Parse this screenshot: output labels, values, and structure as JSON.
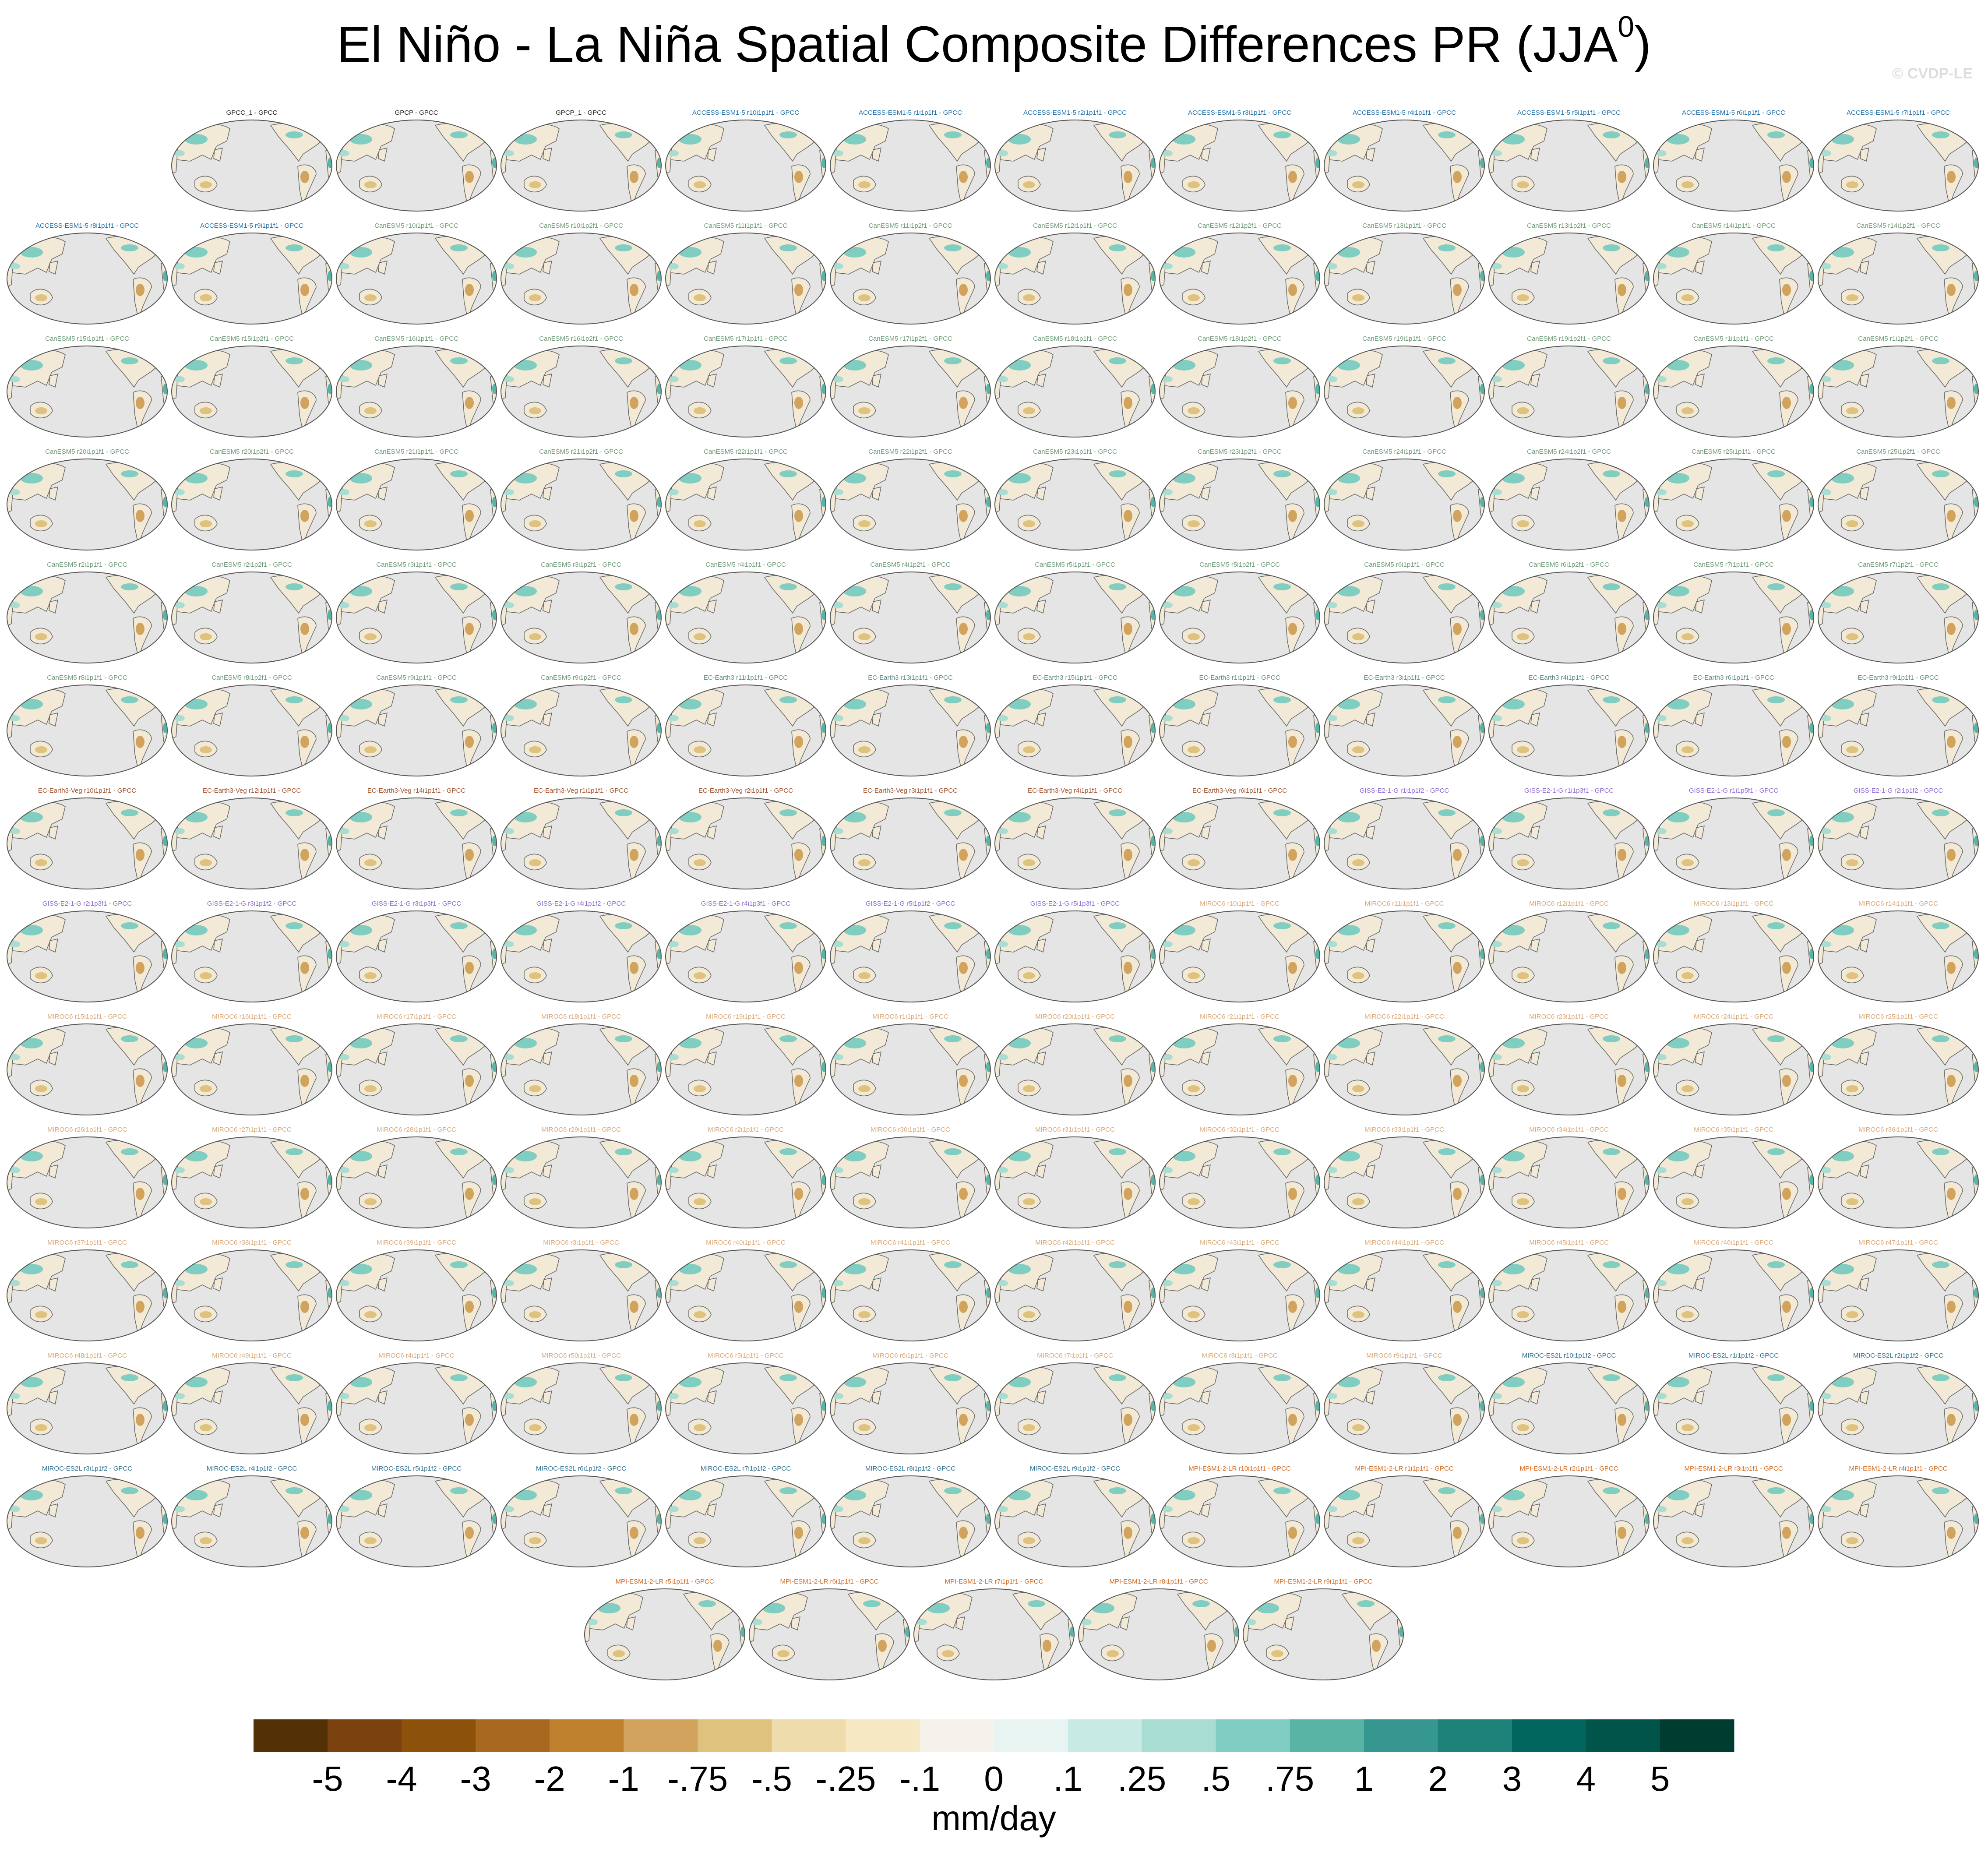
{
  "title": "El Niño - La Niña Spatial Composite Differences PR (JJA",
  "title_superscript": "0",
  "title_end": ")",
  "watermark": "© CVDP-LE",
  "groups": [
    {
      "color": "#222222",
      "titles": [
        "GPCC_1 - GPCC",
        "GPCP - GPCC",
        "GPCP_1 - GPCC"
      ]
    },
    {
      "color": "#1f6fa8",
      "titles": [
        "ACCESS-ESM1-5 r10i1p1f1 - GPCC",
        "ACCESS-ESM1-5 r1i1p1f1 - GPCC",
        "ACCESS-ESM1-5 r2i1p1f1 - GPCC",
        "ACCESS-ESM1-5 r3i1p1f1 - GPCC",
        "ACCESS-ESM1-5 r4i1p1f1 - GPCC",
        "ACCESS-ESM1-5 r5i1p1f1 - GPCC",
        "ACCESS-ESM1-5 r6i1p1f1 - GPCC",
        "ACCESS-ESM1-5 r7i1p1f1 - GPCC",
        "ACCESS-ESM1-5 r8i1p1f1 - GPCC",
        "ACCESS-ESM1-5 r9i1p1f1 - GPCC"
      ]
    },
    {
      "color": "#6f9a78",
      "titles": [
        "CanESM5 r10i1p1f1 - GPCC",
        "CanESM5 r10i1p2f1 - GPCC",
        "CanESM5 r11i1p1f1 - GPCC",
        "CanESM5 r11i1p2f1 - GPCC",
        "CanESM5 r12i1p1f1 - GPCC",
        "CanESM5 r12i1p2f1 - GPCC",
        "CanESM5 r13i1p1f1 - GPCC",
        "CanESM5 r13i1p2f1 - GPCC",
        "CanESM5 r14i1p1f1 - GPCC",
        "CanESM5 r14i1p2f1 - GPCC",
        "CanESM5 r15i1p1f1 - GPCC",
        "CanESM5 r15i1p2f1 - GPCC",
        "CanESM5 r16i1p1f1 - GPCC",
        "CanESM5 r16i1p2f1 - GPCC",
        "CanESM5 r17i1p1f1 - GPCC",
        "CanESM5 r17i1p2f1 - GPCC",
        "CanESM5 r18i1p1f1 - GPCC",
        "CanESM5 r18i1p2f1 - GPCC",
        "CanESM5 r19i1p1f1 - GPCC",
        "CanESM5 r19i1p2f1 - GPCC",
        "CanESM5 r1i1p1f1 - GPCC",
        "CanESM5 r1i1p2f1 - GPCC",
        "CanESM5 r20i1p1f1 - GPCC",
        "CanESM5 r20i1p2f1 - GPCC",
        "CanESM5 r21i1p1f1 - GPCC",
        "CanESM5 r21i1p2f1 - GPCC",
        "CanESM5 r22i1p1f1 - GPCC",
        "CanESM5 r22i1p2f1 - GPCC",
        "CanESM5 r23i1p1f1 - GPCC",
        "CanESM5 r23i1p2f1 - GPCC",
        "CanESM5 r24i1p1f1 - GPCC",
        "CanESM5 r24i1p2f1 - GPCC",
        "CanESM5 r25i1p1f1 - GPCC",
        "CanESM5 r25i1p2f1 - GPCC",
        "CanESM5 r2i1p1f1 - GPCC",
        "CanESM5 r2i1p2f1 - GPCC",
        "CanESM5 r3i1p1f1 - GPCC",
        "CanESM5 r3i1p2f1 - GPCC",
        "CanESM5 r4i1p1f1 - GPCC",
        "CanESM5 r4i1p2f1 - GPCC",
        "CanESM5 r5i1p1f1 - GPCC",
        "CanESM5 r5i1p2f1 - GPCC",
        "CanESM5 r6i1p1f1 - GPCC",
        "CanESM5 r6i1p2f1 - GPCC",
        "CanESM5 r7i1p1f1 - GPCC",
        "CanESM5 r7i1p2f1 - GPCC",
        "CanESM5 r8i1p1f1 - GPCC",
        "CanESM5 r8i1p2f1 - GPCC",
        "CanESM5 r9i1p1f1 - GPCC",
        "CanESM5 r9i1p2f1 - GPCC"
      ]
    },
    {
      "color": "#5f8a8a",
      "titles": [
        "EC-Earth3 r11i1p1f1 - GPCC",
        "EC-Earth3 r13i1p1f1 - GPCC",
        "EC-Earth3 r15i1p1f1 - GPCC",
        "EC-Earth3 r1i1p1f1 - GPCC",
        "EC-Earth3 r3i1p1f1 - GPCC",
        "EC-Earth3 r4i1p1f1 - GPCC",
        "EC-Earth3 r6i1p1f1 - GPCC",
        "EC-Earth3 r9i1p1f1 - GPCC"
      ]
    },
    {
      "color": "#a0522d",
      "titles": [
        "EC-Earth3-Veg r10i1p1f1 - GPCC",
        "EC-Earth3-Veg r12i1p1f1 - GPCC",
        "EC-Earth3-Veg r14i1p1f1 - GPCC",
        "EC-Earth3-Veg r1i1p1f1 - GPCC",
        "EC-Earth3-Veg r2i1p1f1 - GPCC",
        "EC-Earth3-Veg r3i1p1f1 - GPCC",
        "EC-Earth3-Veg r4i1p1f1 - GPCC",
        "EC-Earth3-Veg r6i1p1f1 - GPCC"
      ]
    },
    {
      "color": "#8e6bd1",
      "titles": [
        "GISS-E2-1-G r1i1p1f2 - GPCC",
        "GISS-E2-1-G r1i1p3f1 - GPCC",
        "GISS-E2-1-G r1i1p5f1 - GPCC",
        "GISS-E2-1-G r2i1p1f2 - GPCC",
        "GISS-E2-1-G r2i1p3f1 - GPCC",
        "GISS-E2-1-G r3i1p1f2 - GPCC",
        "GISS-E2-1-G r3i1p3f1 - GPCC",
        "GISS-E2-1-G r4i1p1f2 - GPCC",
        "GISS-E2-1-G r4i1p3f1 - GPCC",
        "GISS-E2-1-G r5i1p1f2 - GPCC",
        "GISS-E2-1-G r5i1p3f1 - GPCC"
      ]
    },
    {
      "color": "#d9a878",
      "titles": [
        "MIROC6 r10i1p1f1 - GPCC",
        "MIROC6 r11i1p1f1 - GPCC",
        "MIROC6 r12i1p1f1 - GPCC",
        "MIROC6 r13i1p1f1 - GPCC",
        "MIROC6 r14i1p1f1 - GPCC",
        "MIROC6 r15i1p1f1 - GPCC",
        "MIROC6 r16i1p1f1 - GPCC",
        "MIROC6 r17i1p1f1 - GPCC",
        "MIROC6 r18i1p1f1 - GPCC",
        "MIROC6 r19i1p1f1 - GPCC",
        "MIROC6 r1i1p1f1 - GPCC",
        "MIROC6 r20i1p1f1 - GPCC",
        "MIROC6 r21i1p1f1 - GPCC",
        "MIROC6 r22i1p1f1 - GPCC",
        "MIROC6 r23i1p1f1 - GPCC",
        "MIROC6 r24i1p1f1 - GPCC",
        "MIROC6 r25i1p1f1 - GPCC",
        "MIROC6 r26i1p1f1 - GPCC",
        "MIROC6 r27i1p1f1 - GPCC",
        "MIROC6 r28i1p1f1 - GPCC",
        "MIROC6 r29i1p1f1 - GPCC",
        "MIROC6 r2i1p1f1 - GPCC",
        "MIROC6 r30i1p1f1 - GPCC",
        "MIROC6 r31i1p1f1 - GPCC",
        "MIROC6 r32i1p1f1 - GPCC",
        "MIROC6 r33i1p1f1 - GPCC",
        "MIROC6 r34i1p1f1 - GPCC",
        "MIROC6 r35i1p1f1 - GPCC",
        "MIROC6 r36i1p1f1 - GPCC",
        "MIROC6 r37i1p1f1 - GPCC",
        "MIROC6 r38i1p1f1 - GPCC",
        "MIROC6 r39i1p1f1 - GPCC",
        "MIROC6 r3i1p1f1 - GPCC",
        "MIROC6 r40i1p1f1 - GPCC",
        "MIROC6 r41i1p1f1 - GPCC",
        "MIROC6 r42i1p1f1 - GPCC",
        "MIROC6 r43i1p1f1 - GPCC",
        "MIROC6 r44i1p1f1 - GPCC",
        "MIROC6 r45i1p1f1 - GPCC",
        "MIROC6 r46i1p1f1 - GPCC",
        "MIROC6 r47i1p1f1 - GPCC",
        "MIROC6 r48i1p1f1 - GPCC",
        "MIROC6 r49i1p1f1 - GPCC",
        "MIROC6 r4i1p1f1 - GPCC",
        "MIROC6 r50i1p1f1 - GPCC",
        "MIROC6 r5i1p1f1 - GPCC",
        "MIROC6 r6i1p1f1 - GPCC",
        "MIROC6 r7i1p1f1 - GPCC",
        "MIROC6 r8i1p1f1 - GPCC",
        "MIROC6 r9i1p1f1 - GPCC"
      ]
    },
    {
      "color": "#2f6f8f",
      "titles": [
        "MIROC-ES2L r10i1p1f2 - GPCC",
        "MIROC-ES2L r1i1p1f2 - GPCC",
        "MIROC-ES2L r2i1p1f2 - GPCC",
        "MIROC-ES2L r3i1p1f2 - GPCC",
        "MIROC-ES2L r4i1p1f2 - GPCC",
        "MIROC-ES2L r5i1p1f2 - GPCC",
        "MIROC-ES2L r6i1p1f2 - GPCC",
        "MIROC-ES2L r7i1p1f2 - GPCC",
        "MIROC-ES2L r8i1p1f2 - GPCC",
        "MIROC-ES2L r9i1p1f2 - GPCC"
      ]
    },
    {
      "color": "#d2691e",
      "titles": [
        "MPI-ESM1-2-LR r10i1p1f1 - GPCC",
        "MPI-ESM1-2-LR r1i1p1f1 - GPCC",
        "MPI-ESM1-2-LR r2i1p1f1 - GPCC",
        "MPI-ESM1-2-LR r3i1p1f1 - GPCC",
        "MPI-ESM1-2-LR r4i1p1f1 - GPCC",
        "MPI-ESM1-2-LR r5i1p1f1 - GPCC",
        "MPI-ESM1-2-LR r6i1p1f1 - GPCC",
        "MPI-ESM1-2-LR r7i1p1f1 - GPCC",
        "MPI-ESM1-2-LR r8i1p1f1 - GPCC",
        "MPI-ESM1-2-LR r9i1p1f1 - GPCC"
      ]
    }
  ],
  "colorbar": {
    "label": "mm/day",
    "ticks": [
      -5,
      -4,
      -3,
      -2,
      -1,
      {
        "value": -0.75,
        "label": "-.75"
      },
      {
        "value": -0.5,
        "label": "-.5"
      },
      {
        "value": -0.25,
        "label": "-.25"
      },
      {
        "value": -0.1,
        "label": "-.1"
      },
      0,
      {
        "value": 0.1,
        "label": ".1"
      },
      {
        "value": 0.25,
        "label": ".25"
      },
      {
        "value": 0.5,
        "label": ".5"
      },
      {
        "value": 0.75,
        "label": ".75"
      },
      1,
      2,
      3,
      4,
      5
    ],
    "colors": [
      "#543005",
      "#7a420e",
      "#8c510a",
      "#a8691f",
      "#bf812d",
      "#d1a35c",
      "#dfc27d",
      "#eedcad",
      "#f6e8c3",
      "#f5f2ec",
      "#e8f4f2",
      "#c7eae5",
      "#a8ddd4",
      "#80cdc1",
      "#5ab4a6",
      "#35978f",
      "#1f8278",
      "#01665e",
      "#01544a",
      "#003c30"
    ]
  }
}
